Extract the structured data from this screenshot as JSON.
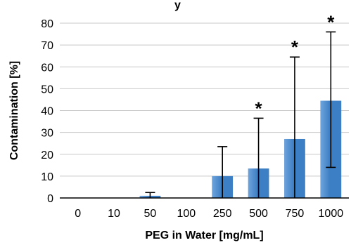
{
  "chart_data": {
    "type": "bar",
    "title": "",
    "top_fragment": "y",
    "xlabel": "PEG in Water [mg/mL]",
    "ylabel": "Contamination [%]",
    "categories": [
      "0",
      "10",
      "50",
      "100",
      "250",
      "500",
      "750",
      "1000"
    ],
    "series": [
      {
        "values": [
          0,
          0,
          1,
          0,
          10,
          13.5,
          27,
          44.5
        ],
        "error_lower": [
          0,
          0,
          1,
          0,
          10,
          13.5,
          27,
          30.5
        ],
        "error_upper": [
          0,
          0,
          1.5,
          0,
          13.5,
          23,
          37.5,
          31.5
        ]
      }
    ],
    "significance": [
      "",
      "",
      "",
      "",
      "",
      "*",
      "*",
      "*"
    ],
    "ylim": [
      0,
      80
    ],
    "yticks": [
      0,
      10,
      20,
      30,
      40,
      50,
      60,
      70,
      80
    ],
    "grid": true,
    "colors": {
      "bar": "#3d7fc4",
      "bar_light": "#6fa4dc",
      "grid": "#c8c8c8",
      "axis": "#000000"
    }
  }
}
